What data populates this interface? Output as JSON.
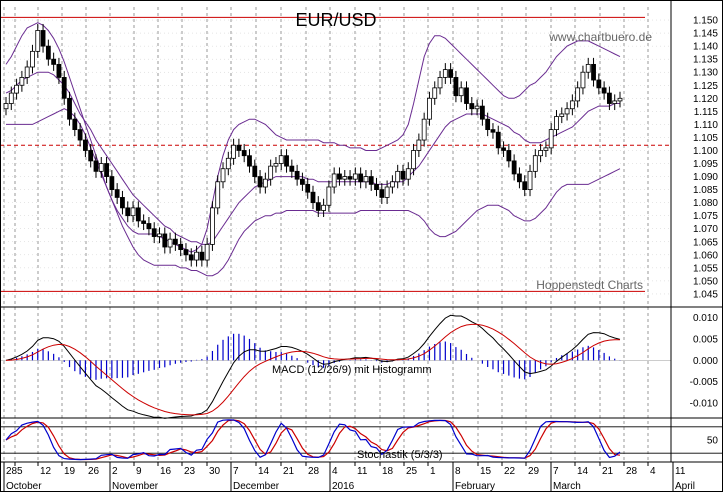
{
  "chart_data": {
    "type": "candlestick",
    "title": "EUR/USD",
    "source_credit": "www.chartbuero.de",
    "watermark": "Hoppenstedt Charts",
    "colors": {
      "candle_up_fill": "#ffffff",
      "candle_down_fill": "#000000",
      "bollinger": "#6a2c91",
      "resistance_line": "#cc0000",
      "dashed_support_line": "#cc0000",
      "macd_line": "#000000",
      "signal_line": "#cc0000",
      "histogram": "#0000cc",
      "stoch_k": "#0000cc",
      "stoch_d": "#cc0000",
      "grid": "#999999"
    },
    "price_panel": {
      "ylim": [
        1.04,
        1.155
      ],
      "y_ticks": [
        "1.045",
        "1.050",
        "1.055",
        "1.060",
        "1.065",
        "1.070",
        "1.075",
        "1.080",
        "1.085",
        "1.090",
        "1.095",
        "1.100",
        "1.105",
        "1.110",
        "1.115",
        "1.120",
        "1.125",
        "1.130",
        "1.135",
        "1.140",
        "1.145",
        "1.150"
      ],
      "horizontal_lines": [
        {
          "value": 1.151,
          "style": "solid"
        },
        {
          "value": 1.046,
          "style": "solid"
        },
        {
          "value": 1.102,
          "style": "dashed"
        }
      ],
      "closes": [
        1.118,
        1.122,
        1.125,
        1.128,
        1.132,
        1.138,
        1.146,
        1.14,
        1.135,
        1.133,
        1.128,
        1.12,
        1.112,
        1.108,
        1.104,
        1.1,
        1.096,
        1.092,
        1.095,
        1.09,
        1.085,
        1.082,
        1.078,
        1.075,
        1.078,
        1.073,
        1.072,
        1.07,
        1.067,
        1.068,
        1.063,
        1.066,
        1.064,
        1.062,
        1.06,
        1.058,
        1.061,
        1.058,
        1.064,
        1.078,
        1.088,
        1.093,
        1.097,
        1.102,
        1.1,
        1.098,
        1.094,
        1.09,
        1.086,
        1.089,
        1.094,
        1.095,
        1.098,
        1.094,
        1.092,
        1.089,
        1.087,
        1.084,
        1.08,
        1.077,
        1.079,
        1.086,
        1.091,
        1.089,
        1.09,
        1.089,
        1.091,
        1.088,
        1.09,
        1.087,
        1.085,
        1.082,
        1.086,
        1.088,
        1.092,
        1.089,
        1.093,
        1.1,
        1.104,
        1.112,
        1.12,
        1.124,
        1.128,
        1.131,
        1.128,
        1.121,
        1.124,
        1.118,
        1.116,
        1.117,
        1.112,
        1.108,
        1.107,
        1.101,
        1.1,
        1.096,
        1.091,
        1.088,
        1.085,
        1.092,
        1.098,
        1.1,
        1.101,
        1.108,
        1.113,
        1.114,
        1.116,
        1.119,
        1.124,
        1.13,
        1.133,
        1.127,
        1.124,
        1.122,
        1.118,
        1.119,
        1.12
      ],
      "bollinger_upper": [
        1.133,
        1.136,
        1.14,
        1.144,
        1.147,
        1.148,
        1.149,
        1.148,
        1.146,
        1.143,
        1.139,
        1.134,
        1.128,
        1.122,
        1.116,
        1.11,
        1.104,
        1.098,
        1.092,
        1.086,
        1.081,
        1.077,
        1.074,
        1.071,
        1.069,
        1.068,
        1.068,
        1.068,
        1.068,
        1.067,
        1.066,
        1.065,
        1.064,
        1.063,
        1.062,
        1.061,
        1.062,
        1.064,
        1.07,
        1.08,
        1.09,
        1.098,
        1.104,
        1.108,
        1.11,
        1.111,
        1.112,
        1.112,
        1.111,
        1.11,
        1.108,
        1.106,
        1.105,
        1.104,
        1.104,
        1.104,
        1.104,
        1.104,
        1.104,
        1.104,
        1.103,
        1.103,
        1.103,
        1.102,
        1.102,
        1.101,
        1.101,
        1.101,
        1.1,
        1.1,
        1.1,
        1.101,
        1.102,
        1.103,
        1.104,
        1.106,
        1.11,
        1.118,
        1.127,
        1.136,
        1.141,
        1.144,
        1.144,
        1.143,
        1.141,
        1.139,
        1.137,
        1.135,
        1.133,
        1.131,
        1.129,
        1.127,
        1.125,
        1.123,
        1.121,
        1.12,
        1.12,
        1.121,
        1.123,
        1.125,
        1.126,
        1.128,
        1.13,
        1.133,
        1.136,
        1.138,
        1.14,
        1.141,
        1.142,
        1.142,
        1.142,
        1.141,
        1.14,
        1.139,
        1.138,
        1.137,
        1.136
      ],
      "bollinger_mid": [
        1.122,
        1.123,
        1.125,
        1.127,
        1.128,
        1.129,
        1.13,
        1.13,
        1.13,
        1.129,
        1.127,
        1.125,
        1.122,
        1.118,
        1.114,
        1.111,
        1.108,
        1.104,
        1.101,
        1.098,
        1.095,
        1.092,
        1.089,
        1.086,
        1.083,
        1.081,
        1.079,
        1.077,
        1.075,
        1.073,
        1.071,
        1.07,
        1.068,
        1.067,
        1.066,
        1.065,
        1.065,
        1.064,
        1.064,
        1.065,
        1.068,
        1.071,
        1.074,
        1.077,
        1.08,
        1.082,
        1.084,
        1.086,
        1.087,
        1.088,
        1.089,
        1.09,
        1.09,
        1.09,
        1.09,
        1.09,
        1.09,
        1.089,
        1.089,
        1.088,
        1.088,
        1.088,
        1.088,
        1.088,
        1.088,
        1.088,
        1.088,
        1.088,
        1.088,
        1.088,
        1.087,
        1.087,
        1.087,
        1.088,
        1.088,
        1.088,
        1.09,
        1.092,
        1.094,
        1.097,
        1.1,
        1.103,
        1.106,
        1.109,
        1.111,
        1.112,
        1.113,
        1.114,
        1.114,
        1.114,
        1.114,
        1.113,
        1.112,
        1.111,
        1.11,
        1.109,
        1.107,
        1.106,
        1.104,
        1.103,
        1.103,
        1.103,
        1.104,
        1.105,
        1.106,
        1.107,
        1.108,
        1.109,
        1.111,
        1.113,
        1.115,
        1.116,
        1.117,
        1.117,
        1.117,
        1.118,
        1.118
      ],
      "bollinger_lower": [
        1.11,
        1.11,
        1.11,
        1.11,
        1.11,
        1.11,
        1.111,
        1.112,
        1.113,
        1.114,
        1.115,
        1.116,
        1.115,
        1.113,
        1.11,
        1.106,
        1.101,
        1.096,
        1.091,
        1.086,
        1.081,
        1.076,
        1.071,
        1.067,
        1.063,
        1.06,
        1.058,
        1.057,
        1.056,
        1.056,
        1.056,
        1.056,
        1.056,
        1.055,
        1.055,
        1.054,
        1.054,
        1.053,
        1.052,
        1.052,
        1.053,
        1.055,
        1.058,
        1.062,
        1.066,
        1.069,
        1.071,
        1.073,
        1.074,
        1.075,
        1.075,
        1.076,
        1.076,
        1.077,
        1.077,
        1.077,
        1.077,
        1.077,
        1.077,
        1.076,
        1.076,
        1.076,
        1.076,
        1.076,
        1.076,
        1.076,
        1.076,
        1.077,
        1.077,
        1.077,
        1.077,
        1.077,
        1.077,
        1.077,
        1.077,
        1.077,
        1.077,
        1.076,
        1.075,
        1.073,
        1.07,
        1.068,
        1.067,
        1.067,
        1.068,
        1.069,
        1.071,
        1.073,
        1.075,
        1.077,
        1.078,
        1.079,
        1.079,
        1.079,
        1.078,
        1.077,
        1.075,
        1.074,
        1.073,
        1.073,
        1.074,
        1.076,
        1.078,
        1.081,
        1.084,
        1.086,
        1.087,
        1.087,
        1.087,
        1.087,
        1.087,
        1.088,
        1.089,
        1.09,
        1.091,
        1.092,
        1.093
      ]
    },
    "macd_panel": {
      "label": "MACD (12/26/9) mit Histogramm",
      "ylim": [
        -0.0135,
        0.0125
      ],
      "y_ticks": [
        "0.010",
        "0.005",
        "0.000",
        "-0.005",
        "-0.010"
      ]
    },
    "stoch_panel": {
      "label": "Stochastik (5/3/3)",
      "ylim": [
        0,
        100
      ],
      "y_ticks": [
        "50"
      ],
      "reference_lines": [
        80,
        20
      ]
    },
    "x_axis": {
      "day_labels": [
        "28",
        "5",
        "12",
        "19",
        "26",
        "2",
        "9",
        "16",
        "23",
        "30",
        "7",
        "14",
        "21",
        "28",
        "4",
        "11",
        "18",
        "25",
        "1",
        "8",
        "15",
        "22",
        "29",
        "7",
        "14",
        "21",
        "28",
        "4",
        "11"
      ],
      "month_labels": [
        "October",
        "November",
        "December",
        "2016",
        "February",
        "March",
        "April"
      ]
    }
  }
}
